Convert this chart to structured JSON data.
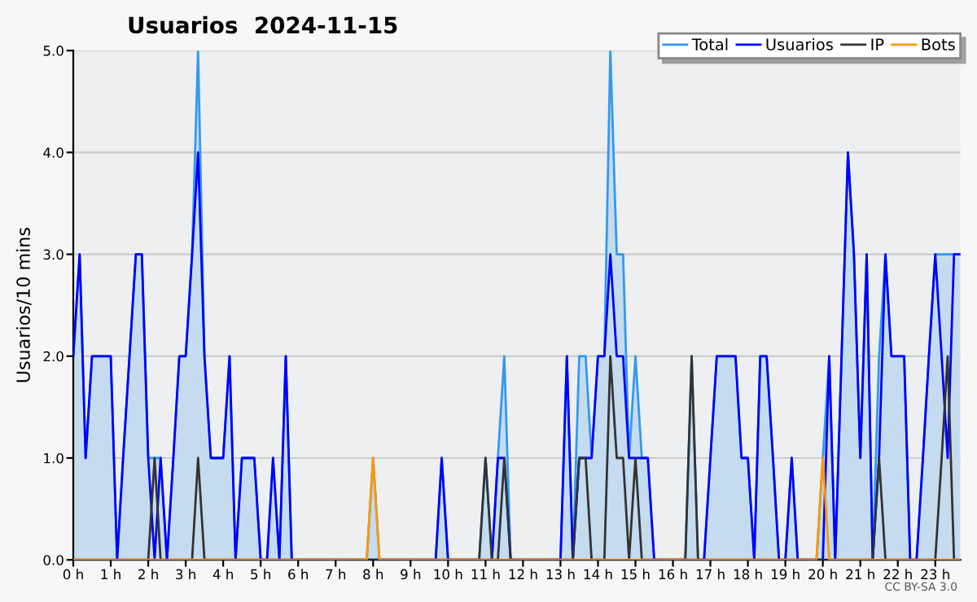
{
  "chart_data": {
    "type": "line",
    "title": "Usuarios  2024-11-15",
    "ylabel": "Usuarios/10 mins",
    "x": [
      0,
      0.17,
      0.33,
      0.5,
      0.67,
      0.83,
      1,
      1.17,
      1.33,
      1.5,
      1.67,
      1.83,
      2,
      2.17,
      2.33,
      2.5,
      2.67,
      2.83,
      3,
      3.17,
      3.33,
      3.5,
      3.67,
      3.83,
      4,
      4.17,
      4.33,
      4.5,
      4.67,
      4.83,
      5,
      5.17,
      5.33,
      5.5,
      5.67,
      5.83,
      6,
      6.17,
      6.33,
      6.5,
      6.67,
      6.83,
      7,
      7.17,
      7.33,
      7.5,
      7.67,
      7.83,
      8,
      8.17,
      8.33,
      8.5,
      8.67,
      8.83,
      9,
      9.17,
      9.33,
      9.5,
      9.67,
      9.83,
      10,
      10.17,
      10.33,
      10.5,
      10.67,
      10.83,
      11,
      11.17,
      11.33,
      11.5,
      11.67,
      11.83,
      12,
      12.17,
      12.33,
      12.5,
      12.67,
      12.83,
      13,
      13.17,
      13.33,
      13.5,
      13.67,
      13.83,
      14,
      14.17,
      14.33,
      14.5,
      14.67,
      14.83,
      15,
      15.17,
      15.33,
      15.5,
      15.67,
      15.83,
      16,
      16.17,
      16.33,
      16.5,
      16.67,
      16.83,
      17,
      17.17,
      17.33,
      17.5,
      17.67,
      17.83,
      18,
      18.17,
      18.33,
      18.5,
      18.67,
      18.83,
      19,
      19.17,
      19.33,
      19.5,
      19.67,
      19.83,
      20,
      20.17,
      20.33,
      20.5,
      20.67,
      20.83,
      21,
      21.17,
      21.33,
      21.5,
      21.67,
      21.83,
      22,
      22.17,
      22.33,
      22.5,
      22.67,
      22.83,
      23,
      23.17,
      23.33,
      23.5,
      23.67
    ],
    "series": [
      {
        "name": "Total",
        "type": "area",
        "color": "#3399ee",
        "values": [
          2,
          3,
          1,
          2,
          2,
          2,
          2,
          0,
          1,
          2,
          3,
          3,
          1,
          1,
          1,
          0,
          1,
          2,
          2,
          3,
          5,
          2,
          1,
          1,
          1,
          2,
          0,
          1,
          1,
          1,
          0,
          0,
          1,
          0,
          2,
          0,
          0,
          0,
          0,
          0,
          0,
          0,
          0,
          0,
          0,
          0,
          0,
          0,
          1,
          0,
          0,
          0,
          0,
          0,
          0,
          0,
          0,
          0,
          0,
          1,
          0,
          0,
          0,
          0,
          0,
          0,
          1,
          0,
          1,
          2,
          0,
          0,
          0,
          0,
          0,
          0,
          0,
          0,
          0,
          2,
          0,
          2,
          2,
          1,
          2,
          2,
          5,
          3,
          3,
          1,
          2,
          1,
          1,
          0,
          0,
          0,
          0,
          0,
          0,
          2,
          0,
          0,
          1,
          2,
          2,
          2,
          2,
          1,
          1,
          0,
          2,
          2,
          1,
          0,
          0,
          1,
          0,
          0,
          0,
          0,
          1,
          2,
          0,
          2,
          4,
          3,
          1,
          3,
          0,
          2,
          3,
          2,
          2,
          2,
          0,
          0,
          1,
          2,
          3,
          3,
          3,
          3,
          3
        ]
      },
      {
        "name": "Usuarios",
        "color": "#0000ff",
        "values": [
          2,
          3,
          1,
          2,
          2,
          2,
          2,
          0,
          1,
          2,
          3,
          3,
          1,
          0,
          1,
          0,
          1,
          2,
          2,
          3,
          4,
          2,
          1,
          1,
          1,
          2,
          0,
          1,
          1,
          1,
          0,
          0,
          1,
          0,
          2,
          0,
          0,
          0,
          0,
          0,
          0,
          0,
          0,
          0,
          0,
          0,
          0,
          0,
          0,
          0,
          0,
          0,
          0,
          0,
          0,
          0,
          0,
          0,
          0,
          1,
          0,
          0,
          0,
          0,
          0,
          0,
          0,
          0,
          1,
          1,
          0,
          0,
          0,
          0,
          0,
          0,
          0,
          0,
          0,
          2,
          0,
          1,
          1,
          1,
          2,
          2,
          3,
          2,
          2,
          1,
          1,
          1,
          1,
          0,
          0,
          0,
          0,
          0,
          0,
          0,
          0,
          0,
          1,
          2,
          2,
          2,
          2,
          1,
          1,
          0,
          2,
          2,
          1,
          0,
          0,
          1,
          0,
          0,
          0,
          0,
          0,
          2,
          0,
          2,
          4,
          3,
          1,
          3,
          0,
          1,
          3,
          2,
          2,
          2,
          0,
          0,
          1,
          2,
          3,
          2,
          1,
          3,
          3
        ]
      },
      {
        "name": "IP",
        "color": "#333333",
        "values": [
          0,
          0,
          0,
          0,
          0,
          0,
          0,
          0,
          0,
          0,
          0,
          0,
          0,
          1,
          0,
          0,
          0,
          0,
          0,
          0,
          1,
          0,
          0,
          0,
          0,
          0,
          0,
          0,
          0,
          0,
          0,
          0,
          0,
          0,
          0,
          0,
          0,
          0,
          0,
          0,
          0,
          0,
          0,
          0,
          0,
          0,
          0,
          0,
          0,
          0,
          0,
          0,
          0,
          0,
          0,
          0,
          0,
          0,
          0,
          0,
          0,
          0,
          0,
          0,
          0,
          0,
          1,
          0,
          0,
          1,
          0,
          0,
          0,
          0,
          0,
          0,
          0,
          0,
          0,
          0,
          0,
          1,
          1,
          0,
          0,
          0,
          2,
          1,
          1,
          0,
          1,
          0,
          0,
          0,
          0,
          0,
          0,
          0,
          0,
          2,
          0,
          0,
          0,
          0,
          0,
          0,
          0,
          0,
          0,
          0,
          0,
          0,
          0,
          0,
          0,
          0,
          0,
          0,
          0,
          0,
          0,
          0,
          0,
          0,
          0,
          0,
          0,
          0,
          0,
          1,
          0,
          0,
          0,
          0,
          0,
          0,
          0,
          0,
          0,
          1,
          2,
          0,
          0
        ]
      },
      {
        "name": "Bots",
        "color": "#ff9900",
        "values": [
          0,
          0,
          0,
          0,
          0,
          0,
          0,
          0,
          0,
          0,
          0,
          0,
          0,
          0,
          0,
          0,
          0,
          0,
          0,
          0,
          0,
          0,
          0,
          0,
          0,
          0,
          0,
          0,
          0,
          0,
          0,
          0,
          0,
          0,
          0,
          0,
          0,
          0,
          0,
          0,
          0,
          0,
          0,
          0,
          0,
          0,
          0,
          0,
          1,
          0,
          0,
          0,
          0,
          0,
          0,
          0,
          0,
          0,
          0,
          0,
          0,
          0,
          0,
          0,
          0,
          0,
          0,
          0,
          0,
          0,
          0,
          0,
          0,
          0,
          0,
          0,
          0,
          0,
          0,
          0,
          0,
          0,
          0,
          0,
          0,
          0,
          0,
          0,
          0,
          0,
          0,
          0,
          0,
          0,
          0,
          0,
          0,
          0,
          0,
          0,
          0,
          0,
          0,
          0,
          0,
          0,
          0,
          0,
          0,
          0,
          0,
          0,
          0,
          0,
          0,
          0,
          0,
          0,
          0,
          0,
          1,
          0,
          0,
          0,
          0,
          0,
          0,
          0,
          0,
          0,
          0,
          0,
          0,
          0,
          0,
          0,
          0,
          0,
          0,
          0,
          0,
          0,
          0
        ]
      }
    ],
    "xlim": [
      0,
      23.67
    ],
    "ylim": [
      0,
      5
    ],
    "xticks": [
      {
        "value": 0,
        "label": "0 h"
      },
      {
        "value": 1,
        "label": "1 h"
      },
      {
        "value": 2,
        "label": "2 h"
      },
      {
        "value": 3,
        "label": "3 h"
      },
      {
        "value": 4,
        "label": "4 h"
      },
      {
        "value": 5,
        "label": "5 h"
      },
      {
        "value": 6,
        "label": "6 h"
      },
      {
        "value": 7,
        "label": "7 h"
      },
      {
        "value": 8,
        "label": "8 h"
      },
      {
        "value": 9,
        "label": "9 h"
      },
      {
        "value": 10,
        "label": "10 h"
      },
      {
        "value": 11,
        "label": "11 h"
      },
      {
        "value": 12,
        "label": "12 h"
      },
      {
        "value": 13,
        "label": "13 h"
      },
      {
        "value": 14,
        "label": "14 h"
      },
      {
        "value": 15,
        "label": "15 h"
      },
      {
        "value": 16,
        "label": "16 h"
      },
      {
        "value": 17,
        "label": "17 h"
      },
      {
        "value": 18,
        "label": "18 h"
      },
      {
        "value": 19,
        "label": "19 h"
      },
      {
        "value": 20,
        "label": "20 h"
      },
      {
        "value": 21,
        "label": "21 h"
      },
      {
        "value": 22,
        "label": "22 h"
      },
      {
        "value": 23,
        "label": "23 h"
      }
    ],
    "yticks": [
      {
        "value": 0,
        "label": "0.0"
      },
      {
        "value": 1,
        "label": "1.0"
      },
      {
        "value": 2,
        "label": "2.0"
      },
      {
        "value": 3,
        "label": "3.0"
      },
      {
        "value": 4,
        "label": "4.0"
      },
      {
        "value": 5,
        "label": "5.0"
      }
    ],
    "grid": "y",
    "legend": "top right",
    "annotations": [
      "CC BY-SA 3.0"
    ]
  }
}
